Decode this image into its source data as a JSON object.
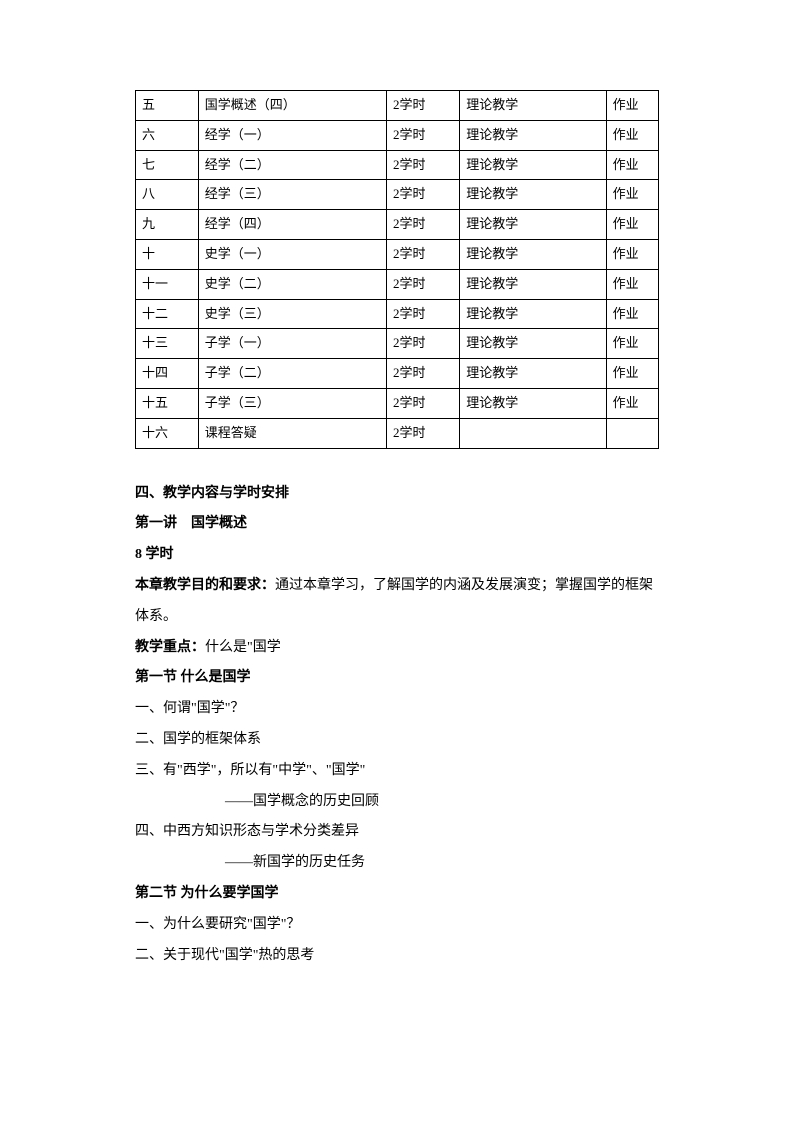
{
  "table": {
    "rows": [
      [
        "五",
        "国学概述（四）",
        "2学时",
        "理论教学",
        "作业"
      ],
      [
        "六",
        "经学（一）",
        "2学时",
        "理论教学",
        "作业"
      ],
      [
        "七",
        "经学（二）",
        "2学时",
        "理论教学",
        "作业"
      ],
      [
        "八",
        "经学（三）",
        "2学时",
        "理论教学",
        "作业"
      ],
      [
        "九",
        "经学（四）",
        "2学时",
        "理论教学",
        "作业"
      ],
      [
        "十",
        "史学（一）",
        "2学时",
        "理论教学",
        "作业"
      ],
      [
        "十一",
        "史学（二）",
        "2学时",
        "理论教学",
        "作业"
      ],
      [
        "十二",
        "史学（三）",
        "2学时",
        "理论教学",
        "作业"
      ],
      [
        "十三",
        "子学（一）",
        "2学时",
        "理论教学",
        "作业"
      ],
      [
        "十四",
        "子学（二）",
        "2学时",
        "理论教学",
        "作业"
      ],
      [
        "十五",
        "子学（三）",
        "2学时",
        "理论教学",
        "作业"
      ],
      [
        "十六",
        "课程答疑",
        "2学时",
        "",
        ""
      ]
    ]
  },
  "content": {
    "heading_4": "四、教学内容与学时安排",
    "lecture_1": "第一讲　国学概述",
    "hours": "8 学时",
    "objective_label": "本章教学目的和要求：",
    "objective_text": "通过本章学习，了解国学的内涵及发展演变；掌握国学的框架体系。",
    "focus_label": "教学重点：",
    "focus_text": "什么是\"国学",
    "section_1": "第一节  什么是国学",
    "item_1_1": "一、何谓\"国学\"？",
    "item_1_2": "二、国学的框架体系",
    "item_1_3": "三、有\"西学\"，所以有\"中学\"、\"国学\"",
    "item_1_3_sub": "——国学概念的历史回顾",
    "item_1_4": "四、中西方知识形态与学术分类差异",
    "item_1_4_sub": "——新国学的历史任务",
    "section_2": "第二节  为什么要学国学",
    "item_2_1": "一、为什么要研究\"国学\"？",
    "item_2_2": "二、关于现代\"国学\"热的思考"
  }
}
